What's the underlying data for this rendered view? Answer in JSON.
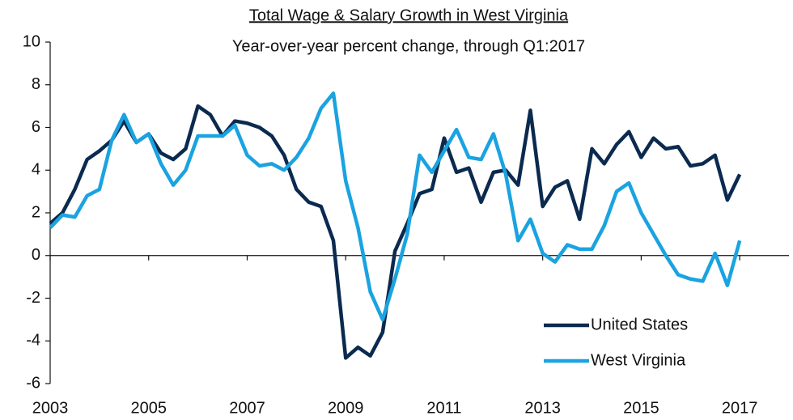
{
  "chart_data": {
    "type": "line",
    "title": "Total Wage & Salary Growth in West Virginia",
    "subtitle": "Year-over-year percent change, through Q1:2017",
    "x": [
      2003,
      2003.25,
      2003.5,
      2003.75,
      2004,
      2004.25,
      2004.5,
      2004.75,
      2005,
      2005.25,
      2005.5,
      2005.75,
      2006,
      2006.25,
      2006.5,
      2006.75,
      2007,
      2007.25,
      2007.5,
      2007.75,
      2008,
      2008.25,
      2008.5,
      2008.75,
      2009,
      2009.25,
      2009.5,
      2009.75,
      2010,
      2010.25,
      2010.5,
      2010.75,
      2011,
      2011.25,
      2011.5,
      2011.75,
      2012,
      2012.25,
      2012.5,
      2012.75,
      2013,
      2013.25,
      2013.5,
      2013.75,
      2014,
      2014.25,
      2014.5,
      2014.75,
      2015,
      2015.25,
      2015.5,
      2015.75,
      2016,
      2016.25,
      2016.5,
      2016.75,
      2017
    ],
    "series": [
      {
        "name": "United States",
        "color": "#0b2a4f",
        "values": [
          1.5,
          2.0,
          3.1,
          4.5,
          4.9,
          5.4,
          6.3,
          5.3,
          5.7,
          4.8,
          4.5,
          5.0,
          7.0,
          6.6,
          5.6,
          6.3,
          6.2,
          6.0,
          5.6,
          4.7,
          3.1,
          2.5,
          2.3,
          0.7,
          -4.8,
          -4.3,
          -4.7,
          -3.6,
          0.2,
          1.5,
          2.9,
          3.1,
          5.5,
          3.9,
          4.1,
          2.5,
          3.9,
          4.0,
          3.3,
          6.8,
          2.3,
          3.2,
          3.5,
          1.7,
          5.0,
          4.3,
          5.2,
          5.8,
          4.6,
          5.5,
          5.0,
          5.1,
          4.2,
          4.3,
          4.7,
          2.6,
          3.8
        ]
      },
      {
        "name": "West Virginia",
        "color": "#1aa3e0",
        "values": [
          1.3,
          1.9,
          1.8,
          2.8,
          3.1,
          5.4,
          6.6,
          5.3,
          5.7,
          4.3,
          3.3,
          4.0,
          5.6,
          5.6,
          5.6,
          6.1,
          4.7,
          4.2,
          4.3,
          4.0,
          4.6,
          5.5,
          6.9,
          7.6,
          3.5,
          1.3,
          -1.7,
          -3.0,
          -1.1,
          1.0,
          4.7,
          3.9,
          4.9,
          5.9,
          4.6,
          4.5,
          5.7,
          3.8,
          0.7,
          1.7,
          0.1,
          -0.3,
          0.5,
          0.3,
          0.3,
          1.4,
          3.0,
          3.4,
          2.0,
          1.0,
          0.0,
          -0.9,
          -1.1,
          -1.2,
          0.1,
          -1.4,
          0.7
        ]
      }
    ],
    "xlim": [
      2003,
      2018
    ],
    "xticks": [
      2003,
      2005,
      2007,
      2009,
      2011,
      2013,
      2015,
      2017
    ],
    "ylim": [
      -6,
      10
    ],
    "yticks": [
      -6,
      -4,
      -2,
      0,
      2,
      4,
      6,
      8,
      10
    ],
    "grid": false,
    "legend": "lower right"
  }
}
